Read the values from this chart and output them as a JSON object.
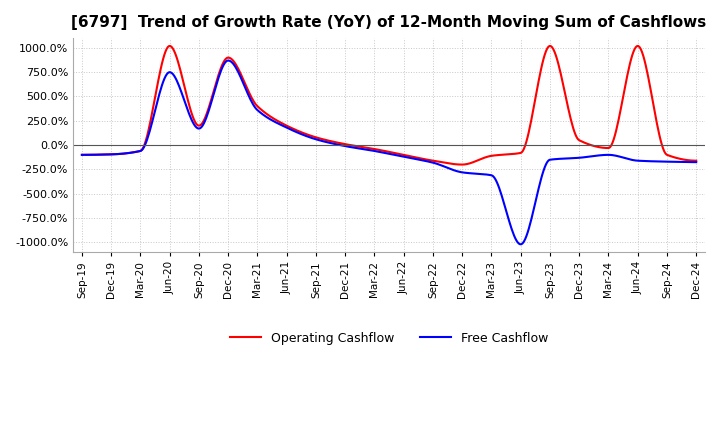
{
  "title": "[6797]  Trend of Growth Rate (YoY) of 12-Month Moving Sum of Cashflows",
  "title_fontsize": 11,
  "ylim": [
    -1100,
    1100
  ],
  "yticks": [
    -1000,
    -750,
    -500,
    -250,
    0,
    250,
    500,
    750,
    1000
  ],
  "ytick_labels": [
    "-1000.0%",
    "-750.0%",
    "-500.0%",
    "-250.0%",
    "0.0%",
    "250.0%",
    "500.0%",
    "750.0%",
    "1000.0%"
  ],
  "legend_labels": [
    "Operating Cashflow",
    "Free Cashflow"
  ],
  "legend_colors": [
    "red",
    "blue"
  ],
  "background_color": "#ffffff",
  "grid_color": "#c8c8c8",
  "x_dates": [
    "Sep-19",
    "Dec-19",
    "Mar-20",
    "Jun-20",
    "Sep-20",
    "Dec-20",
    "Mar-21",
    "Jun-21",
    "Sep-21",
    "Dec-21",
    "Mar-22",
    "Jun-22",
    "Sep-22",
    "Dec-22",
    "Mar-23",
    "Jun-23",
    "Sep-23",
    "Dec-23",
    "Mar-24",
    "Jun-24",
    "Sep-24",
    "Dec-24"
  ],
  "operating_cf": [
    -100,
    -95,
    -60,
    1020,
    200,
    900,
    400,
    200,
    80,
    10,
    -40,
    -100,
    -160,
    -200,
    -110,
    -80,
    1020,
    50,
    -30,
    1020,
    -100,
    -160
  ],
  "free_cf": [
    -100,
    -95,
    -60,
    750,
    170,
    870,
    360,
    180,
    60,
    -10,
    -60,
    -120,
    -180,
    -280,
    -310,
    -1020,
    -150,
    -130,
    -100,
    -160,
    -170,
    -175
  ]
}
